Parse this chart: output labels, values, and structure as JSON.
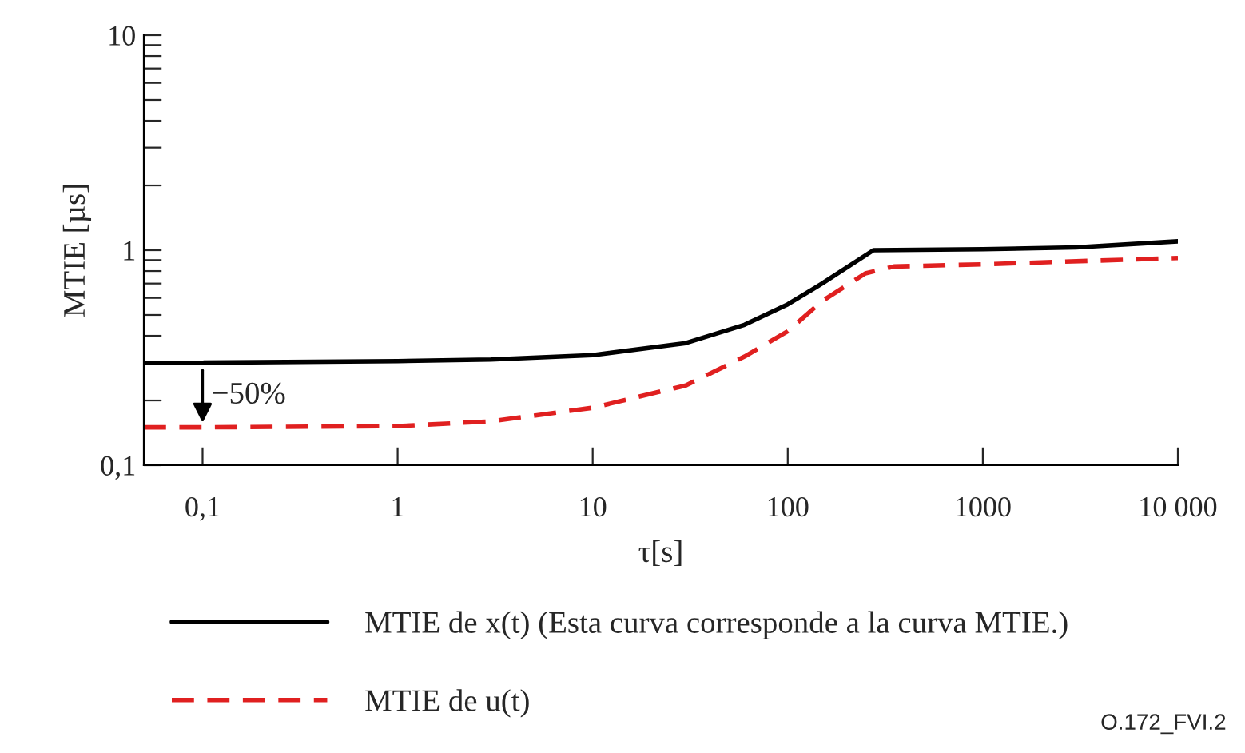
{
  "chart_data": {
    "type": "line",
    "xlabel": "τ[s]",
    "ylabel": "MTIE [µs]",
    "log": "xy",
    "legend": "bottom",
    "grid": false,
    "xlim": [
      0.05,
      10000
    ],
    "xticks": [
      {
        "value": 0.1,
        "label": "0,1"
      },
      1,
      10,
      100,
      1000,
      {
        "value": 10000,
        "label": "10 000"
      }
    ],
    "ylim": [
      0.1,
      10
    ],
    "yticks": [
      {
        "value": 0.1,
        "label": "0,1"
      },
      {
        "value": 0.2,
        "label": null
      },
      {
        "value": 0.3,
        "label": null
      },
      {
        "value": 0.4,
        "label": null
      },
      {
        "value": 0.5,
        "label": null
      },
      {
        "value": 0.6,
        "label": null
      },
      {
        "value": 0.7,
        "label": null
      },
      {
        "value": 0.8,
        "label": null
      },
      {
        "value": 0.9,
        "label": null
      },
      1,
      {
        "value": 2,
        "label": null
      },
      {
        "value": 3,
        "label": null
      },
      {
        "value": 4,
        "label": null
      },
      {
        "value": 5,
        "label": null
      },
      {
        "value": 6,
        "label": null
      },
      {
        "value": 7,
        "label": null
      },
      {
        "value": 8,
        "label": null
      },
      {
        "value": 9,
        "label": null
      },
      10
    ],
    "series": [
      {
        "name": "MTIE de x(t) (Esta curva corresponde a la curva MTIE.)",
        "color": "#000000",
        "line_style": "solid",
        "x": [
          0.05,
          0.1,
          1,
          3,
          10,
          30,
          60,
          100,
          150,
          275,
          1000,
          3000,
          10000
        ],
        "values": [
          0.3,
          0.3,
          0.305,
          0.31,
          0.325,
          0.37,
          0.45,
          0.56,
          0.7,
          1.0,
          1.01,
          1.03,
          1.1
        ]
      },
      {
        "name": "MTIE de u(t)",
        "color": "#e02020",
        "line_style": "dashed",
        "x": [
          0.05,
          0.1,
          1,
          3,
          10,
          30,
          60,
          100,
          150,
          250,
          350,
          1000,
          10000
        ],
        "values": [
          0.15,
          0.15,
          0.152,
          0.16,
          0.185,
          0.235,
          0.32,
          0.42,
          0.58,
          0.78,
          0.84,
          0.86,
          0.92
        ]
      }
    ],
    "annotations": [
      {
        "text": "−50%",
        "x": 0.1,
        "y": 0.15
      },
      "O.172_FVI.2"
    ]
  }
}
